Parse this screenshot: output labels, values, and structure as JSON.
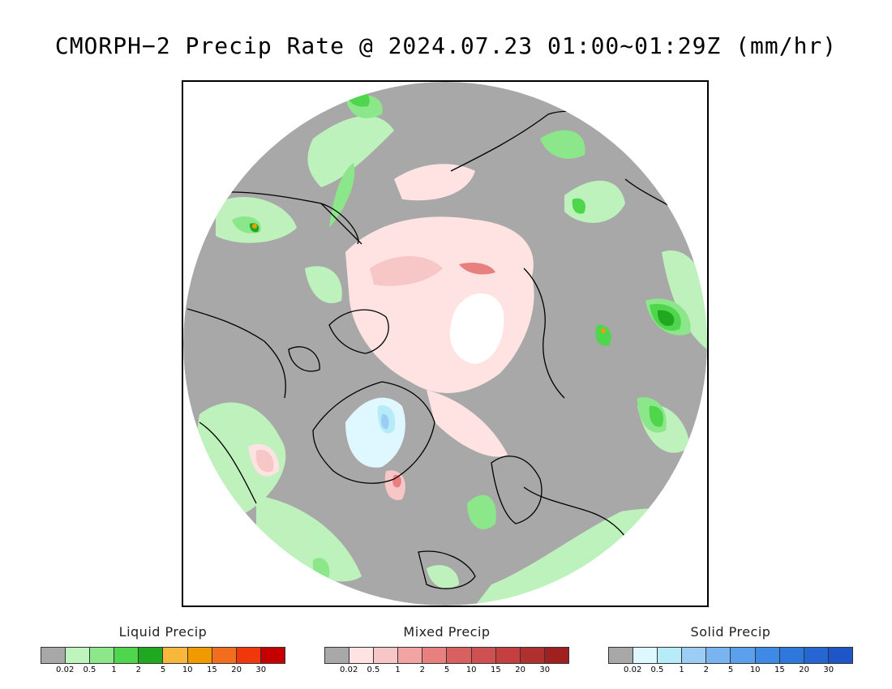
{
  "title": "CMORPH−2 Precip Rate @ 2024.07.23 01:00~01:29Z (mm/hr)",
  "map": {
    "background_color": "#a8a8a8",
    "pole_hole_color": "#ffffff",
    "coastline_color": "#000000",
    "precip_regions": [
      {
        "category": "liquid",
        "level": "0.02-0.5",
        "color": "#bff5bd"
      },
      {
        "category": "liquid",
        "level": "0.5-1",
        "color": "#8ce68a"
      },
      {
        "category": "liquid",
        "level": "1-2",
        "color": "#4fd64d"
      },
      {
        "category": "liquid",
        "level": "2-5",
        "color": "#21a821"
      },
      {
        "category": "liquid",
        "level": "10-15",
        "color": "#f09a00"
      },
      {
        "category": "mixed",
        "level": "0.02-0.5",
        "color": "#ffe2e2"
      },
      {
        "category": "mixed",
        "level": "0.5-1",
        "color": "#f7c6c6"
      },
      {
        "category": "mixed",
        "level": "1-2",
        "color": "#f2a3a3"
      },
      {
        "category": "mixed",
        "level": "2-5",
        "color": "#e88080"
      },
      {
        "category": "solid",
        "level": "0.02-0.5",
        "color": "#dff8ff"
      },
      {
        "category": "solid",
        "level": "0.5-1",
        "color": "#b6ecf7"
      },
      {
        "category": "solid",
        "level": "1-2",
        "color": "#9bcdf5"
      }
    ]
  },
  "legends": [
    {
      "title": "Liquid Precip",
      "colors": [
        "#a8a8a8",
        "#bff5bd",
        "#8ce68a",
        "#4fd64d",
        "#21a821",
        "#f7b73a",
        "#f09a00",
        "#f26d1d",
        "#f0380c",
        "#c40000"
      ],
      "ticks": [
        "0.02",
        "0.5",
        "1",
        "2",
        "5",
        "10",
        "15",
        "20",
        "30"
      ]
    },
    {
      "title": "Mixed Precip",
      "colors": [
        "#a8a8a8",
        "#ffe2e2",
        "#f7c6c6",
        "#f2a3a3",
        "#e88080",
        "#d96060",
        "#cf5050",
        "#c44040",
        "#b03030",
        "#a02020"
      ],
      "ticks": [
        "0.02",
        "0.5",
        "1",
        "2",
        "5",
        "10",
        "15",
        "20",
        "30"
      ]
    },
    {
      "title": "Solid Precip",
      "colors": [
        "#a8a8a8",
        "#dff8ff",
        "#b6ecf7",
        "#9bcdf5",
        "#78b4f0",
        "#5aa0ec",
        "#3f8ae6",
        "#2e78dd",
        "#2566d2",
        "#1e56c8"
      ],
      "ticks": [
        "0.02",
        "0.5",
        "1",
        "2",
        "5",
        "10",
        "15",
        "20",
        "30"
      ]
    }
  ]
}
